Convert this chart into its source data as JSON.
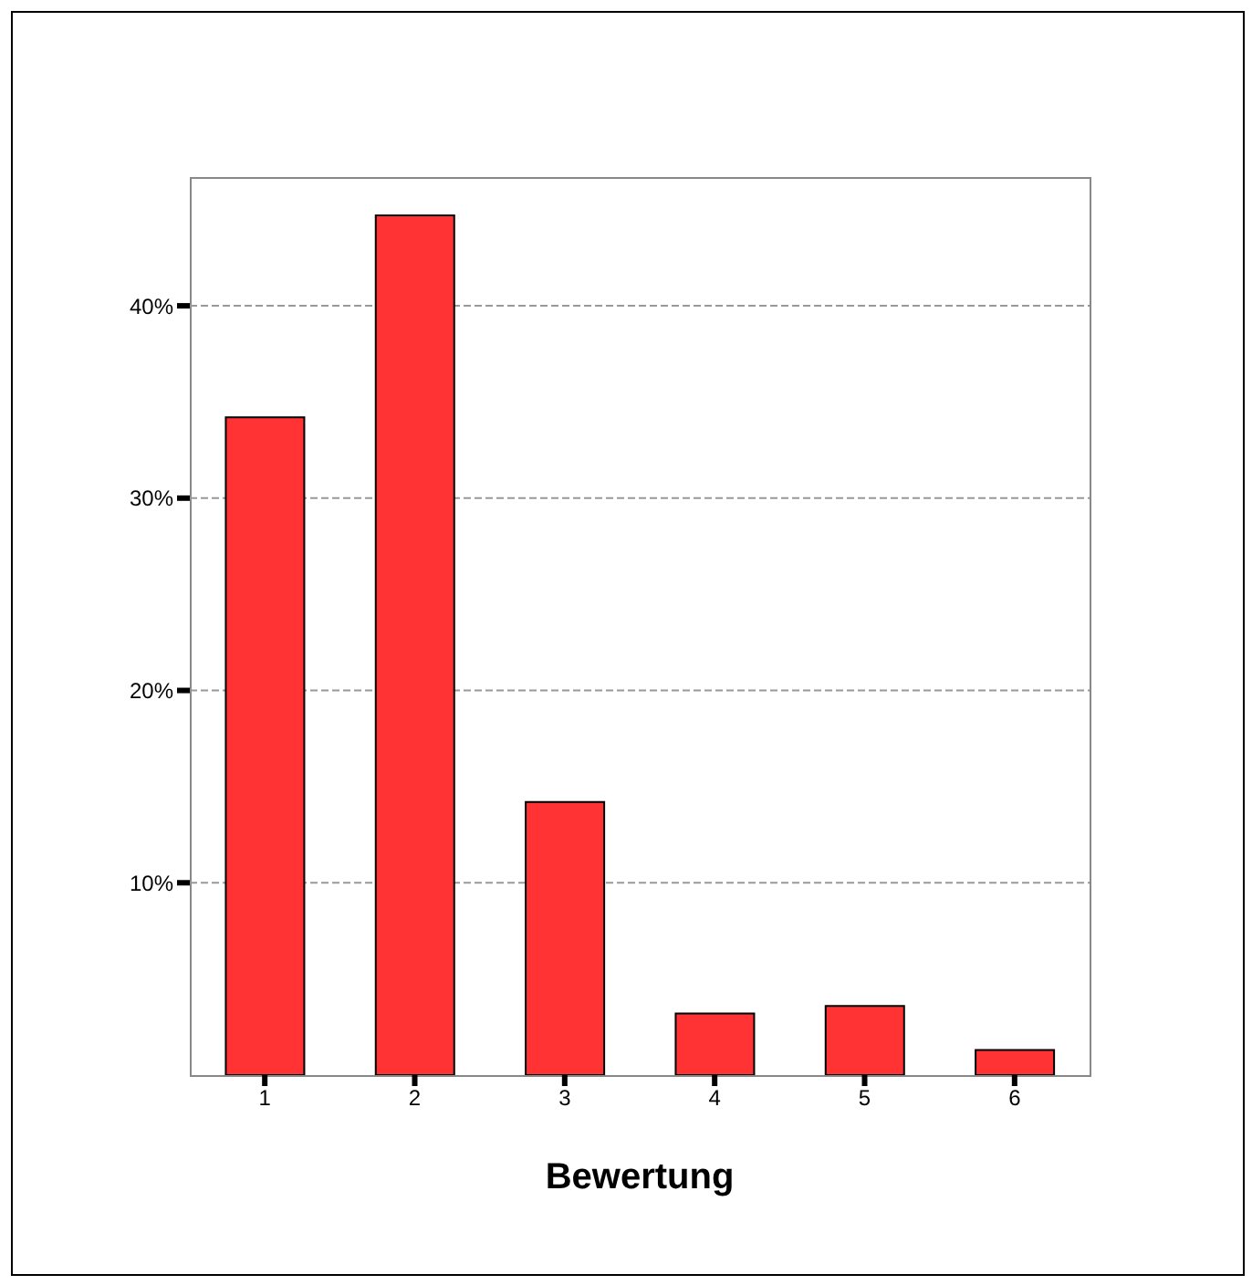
{
  "chart_data": {
    "type": "bar",
    "xlabel": "Bewertung",
    "categories": [
      "1",
      "2",
      "3",
      "4",
      "5",
      "6"
    ],
    "values": [
      34.2,
      44.7,
      14.2,
      3.2,
      3.6,
      1.3
    ],
    "color": "#ff3333",
    "ylim": [
      0,
      46.6
    ],
    "yticks": [
      {
        "value": 10,
        "label": "10%"
      },
      {
        "value": 20,
        "label": "20%"
      },
      {
        "value": 30,
        "label": "30%"
      },
      {
        "value": 40,
        "label": "40%"
      }
    ],
    "grid": "y",
    "legend": false
  }
}
